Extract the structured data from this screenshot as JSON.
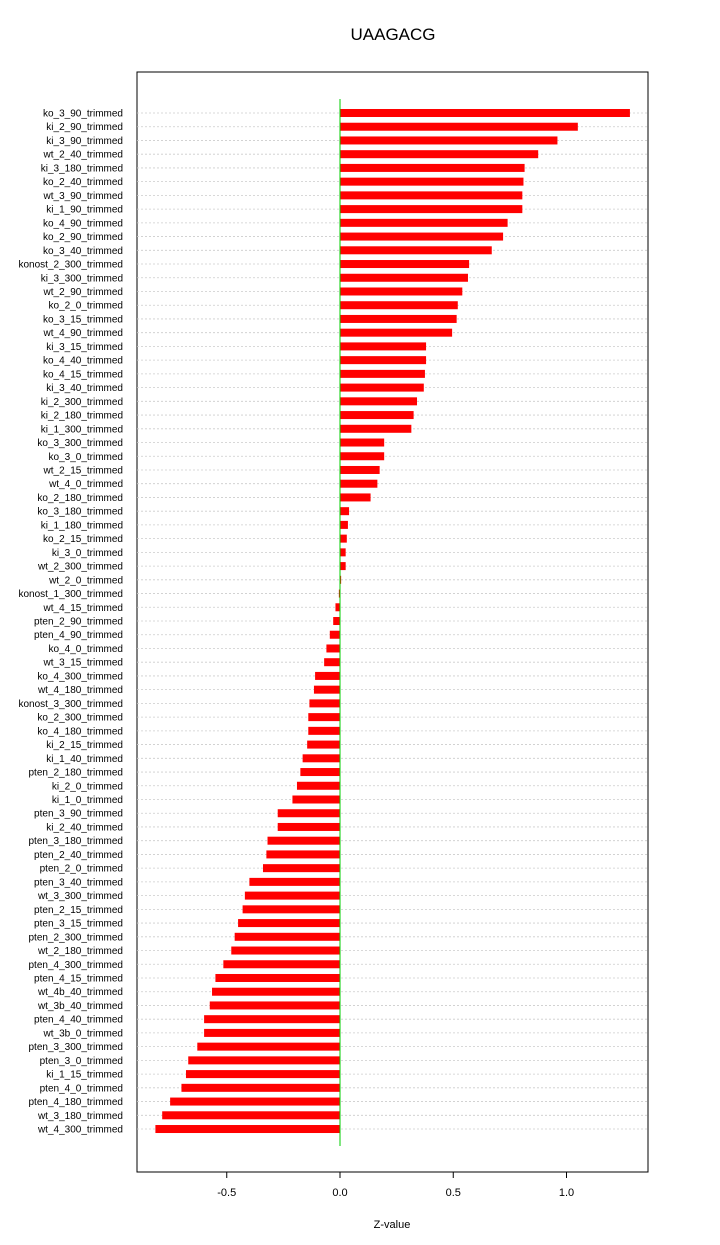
{
  "chart_data": {
    "type": "bar",
    "orientation": "horizontal",
    "title": "UAAGACG",
    "xlabel": "Z-value",
    "ylabel": "",
    "xlim": [
      -0.9,
      1.37
    ],
    "xticks": [
      -0.5,
      0.0,
      0.5,
      1.0
    ],
    "xtick_labels": [
      "-0.5",
      "0.0",
      "0.5",
      "1.0"
    ],
    "grid": "horizontal dotted",
    "legend": "none",
    "bar_color": "#ff0000",
    "zero_line_color": "#00cc00",
    "categories": [
      "ko_3_90_trimmed",
      "ki_2_90_trimmed",
      "ki_3_90_trimmed",
      "wt_2_40_trimmed",
      "ki_3_180_trimmed",
      "ko_2_40_trimmed",
      "wt_3_90_trimmed",
      "ki_1_90_trimmed",
      "ko_4_90_trimmed",
      "ko_2_90_trimmed",
      "ko_3_40_trimmed",
      "konost_2_300_trimmed",
      "ki_3_300_trimmed",
      "wt_2_90_trimmed",
      "ko_2_0_trimmed",
      "ko_3_15_trimmed",
      "wt_4_90_trimmed",
      "ki_3_15_trimmed",
      "ko_4_40_trimmed",
      "ko_4_15_trimmed",
      "ki_3_40_trimmed",
      "ki_2_300_trimmed",
      "ki_2_180_trimmed",
      "ki_1_300_trimmed",
      "ko_3_300_trimmed",
      "ko_3_0_trimmed",
      "wt_2_15_trimmed",
      "wt_4_0_trimmed",
      "ko_2_180_trimmed",
      "ko_3_180_trimmed",
      "ki_1_180_trimmed",
      "ko_2_15_trimmed",
      "ki_3_0_trimmed",
      "wt_2_300_trimmed",
      "wt_2_0_trimmed",
      "konost_1_300_trimmed",
      "wt_4_15_trimmed",
      "pten_2_90_trimmed",
      "pten_4_90_trimmed",
      "ko_4_0_trimmed",
      "wt_3_15_trimmed",
      "ko_4_300_trimmed",
      "wt_4_180_trimmed",
      "konost_3_300_trimmed",
      "ko_2_300_trimmed",
      "ko_4_180_trimmed",
      "ki_2_15_trimmed",
      "ki_1_40_trimmed",
      "pten_2_180_trimmed",
      "ki_2_0_trimmed",
      "ki_1_0_trimmed",
      "pten_3_90_trimmed",
      "ki_2_40_trimmed",
      "pten_3_180_trimmed",
      "pten_2_40_trimmed",
      "pten_2_0_trimmed",
      "pten_3_40_trimmed",
      "wt_3_300_trimmed",
      "pten_2_15_trimmed",
      "pten_3_15_trimmed",
      "pten_2_300_trimmed",
      "wt_2_180_trimmed",
      "pten_4_300_trimmed",
      "pten_4_15_trimmed",
      "wt_4b_40_trimmed",
      "wt_3b_40_trimmed",
      "pten_4_40_trimmed",
      "wt_3b_0_trimmed",
      "pten_3_300_trimmed",
      "pten_3_0_trimmed",
      "ki_1_15_trimmed",
      "pten_4_0_trimmed",
      "pten_4_180_trimmed",
      "wt_3_180_trimmed",
      "wt_4_300_trimmed"
    ],
    "values": [
      1.28,
      1.05,
      0.96,
      0.875,
      0.815,
      0.81,
      0.805,
      0.805,
      0.74,
      0.72,
      0.67,
      0.57,
      0.565,
      0.54,
      0.52,
      0.515,
      0.495,
      0.38,
      0.38,
      0.375,
      0.37,
      0.34,
      0.325,
      0.315,
      0.195,
      0.195,
      0.175,
      0.165,
      0.135,
      0.04,
      0.035,
      0.03,
      0.025,
      0.025,
      0.005,
      -0.005,
      -0.02,
      -0.03,
      -0.045,
      -0.06,
      -0.07,
      -0.11,
      -0.115,
      -0.135,
      -0.14,
      -0.14,
      -0.145,
      -0.165,
      -0.175,
      -0.19,
      -0.21,
      -0.275,
      -0.275,
      -0.32,
      -0.325,
      -0.34,
      -0.4,
      -0.42,
      -0.43,
      -0.45,
      -0.465,
      -0.48,
      -0.515,
      -0.55,
      -0.565,
      -0.575,
      -0.6,
      -0.6,
      -0.63,
      -0.67,
      -0.68,
      -0.7,
      -0.75,
      -0.785,
      -0.815
    ]
  }
}
